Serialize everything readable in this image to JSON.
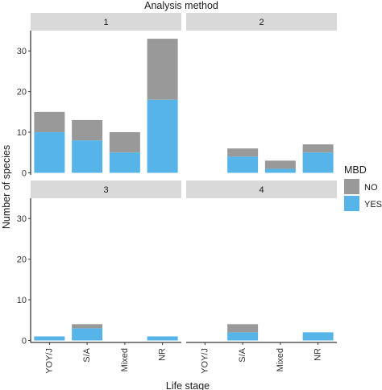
{
  "chart_data": {
    "type": "bar",
    "stacked": true,
    "title": "Analysis method",
    "xlabel": "Life stage",
    "ylabel": "Number of species",
    "categories": [
      "YOY/J",
      "S/A",
      "Mixed",
      "NR"
    ],
    "yticks": [
      0,
      10,
      20,
      30
    ],
    "ylim": [
      -0.5,
      35
    ],
    "legend": {
      "title": "MBD",
      "placement": "right",
      "items": [
        {
          "label": "NO",
          "color": "#999999"
        },
        {
          "label": "YES",
          "color": "#56B4E9"
        }
      ]
    },
    "panels": [
      {
        "label": "1",
        "series": [
          {
            "name": "YES",
            "values": [
              10,
              8,
              5,
              18
            ]
          },
          {
            "name": "NO",
            "values": [
              5,
              5,
              5,
              15
            ]
          }
        ]
      },
      {
        "label": "2",
        "series": [
          {
            "name": "YES",
            "values": [
              0,
              4,
              1,
              5
            ]
          },
          {
            "name": "NO",
            "values": [
              0,
              2,
              2,
              2
            ]
          }
        ]
      },
      {
        "label": "3",
        "series": [
          {
            "name": "YES",
            "values": [
              1,
              3,
              0,
              1
            ]
          },
          {
            "name": "NO",
            "values": [
              0,
              1,
              0,
              0
            ]
          }
        ]
      },
      {
        "label": "4",
        "series": [
          {
            "name": "YES",
            "values": [
              0,
              2,
              0,
              2
            ]
          },
          {
            "name": "NO",
            "values": [
              0,
              2,
              0,
              0
            ]
          }
        ]
      }
    ]
  }
}
